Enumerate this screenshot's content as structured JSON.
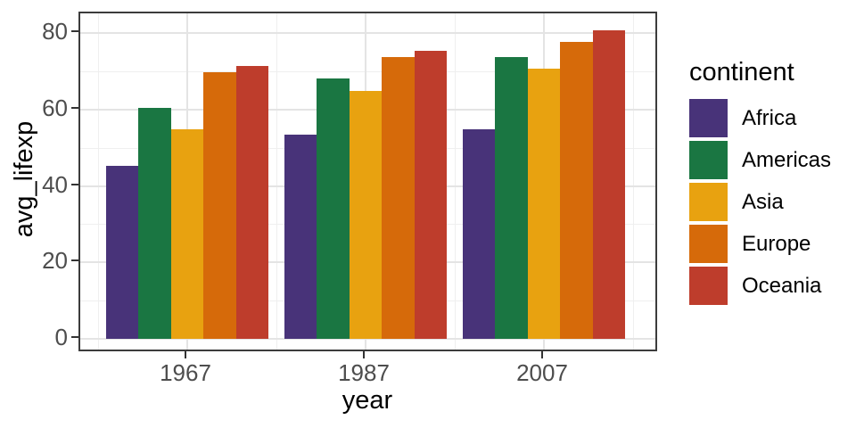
{
  "chart_data": {
    "type": "bar",
    "title": "",
    "xlabel": "year",
    "ylabel": "avg_lifexp",
    "categories": [
      "1967",
      "1987",
      "2007"
    ],
    "series": [
      {
        "name": "Africa",
        "color": "#483379",
        "values": [
          45.3,
          53.3,
          54.8
        ]
      },
      {
        "name": "Americas",
        "color": "#1A7642",
        "values": [
          60.4,
          68.1,
          73.6
        ]
      },
      {
        "name": "Asia",
        "color": "#E8A210",
        "values": [
          54.7,
          64.9,
          70.7
        ]
      },
      {
        "name": "Europe",
        "color": "#D66A0A",
        "values": [
          69.7,
          73.6,
          77.7
        ]
      },
      {
        "name": "Oceania",
        "color": "#BE3D2C",
        "values": [
          71.3,
          75.3,
          80.7
        ]
      }
    ],
    "legend": {
      "title": "continent",
      "position": "right"
    },
    "axes": {
      "y_major_ticks": [
        0,
        20,
        40,
        60,
        80
      ],
      "y_minor_gridlines": [
        10,
        30,
        50,
        70
      ],
      "ylim": [
        0,
        85
      ],
      "x_tick_labels": [
        "1967",
        "1987",
        "2007"
      ]
    },
    "grid": "major+minor",
    "theme": {
      "panel_border": "#3C3C3C",
      "grid_major": "#E4E4E4",
      "grid_minor": "#EFEFEF",
      "tick_color": "#333333",
      "tick_label_color": "#4D4D4D",
      "axis_title_color": "#000000",
      "background": "#FFFFFF"
    }
  }
}
